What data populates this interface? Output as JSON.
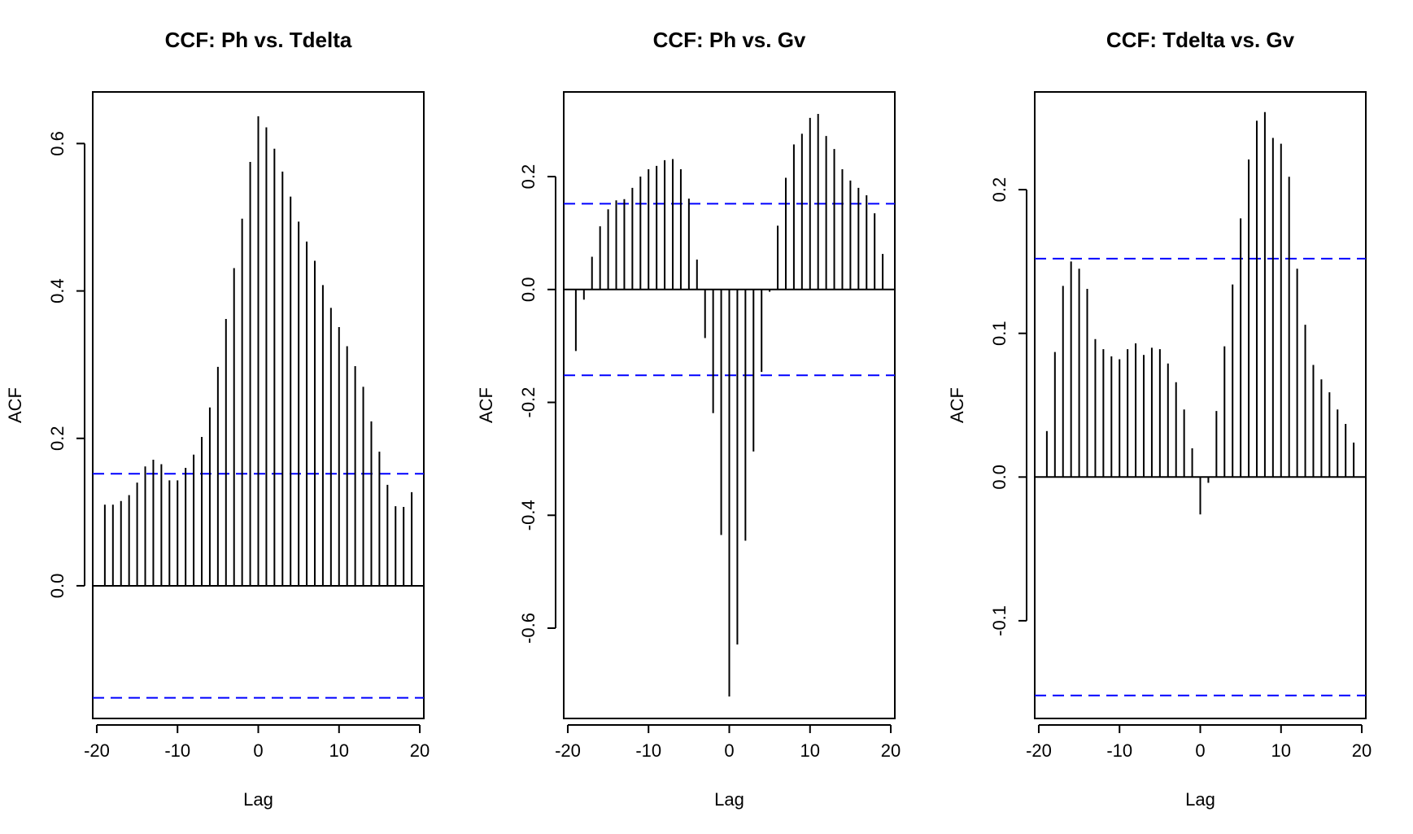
{
  "chart_data": [
    {
      "type": "bar",
      "title": "CCF: Ph vs. Tdelta",
      "xlabel": "Lag",
      "ylabel": "ACF",
      "xlim": [
        -20.5,
        20.5
      ],
      "ylim": [
        -0.18,
        0.67
      ],
      "xticks": [
        -20,
        -10,
        0,
        10,
        20
      ],
      "xtick_labels": [
        "-20",
        "-10",
        "0",
        "10",
        "20"
      ],
      "yticks": [
        0.0,
        0.2,
        0.4,
        0.6
      ],
      "ytick_labels": [
        "0.0",
        "0.2",
        "0.4",
        "0.6"
      ],
      "confidence_band": 0.152,
      "band_color": "#0000ff",
      "lags": [
        -19,
        -18,
        -17,
        -16,
        -15,
        -14,
        -13,
        -12,
        -11,
        -10,
        -9,
        -8,
        -7,
        -6,
        -5,
        -4,
        -3,
        -2,
        -1,
        0,
        1,
        2,
        3,
        4,
        5,
        6,
        7,
        8,
        9,
        10,
        11,
        12,
        13,
        14,
        15,
        16,
        17,
        18,
        19
      ],
      "values": [
        0.11,
        0.11,
        0.115,
        0.123,
        0.14,
        0.162,
        0.171,
        0.165,
        0.143,
        0.143,
        0.16,
        0.178,
        0.202,
        0.242,
        0.297,
        0.362,
        0.431,
        0.498,
        0.575,
        0.637,
        0.622,
        0.593,
        0.562,
        0.528,
        0.494,
        0.467,
        0.441,
        0.408,
        0.377,
        0.351,
        0.325,
        0.298,
        0.27,
        0.223,
        0.182,
        0.137,
        0.108,
        0.107,
        0.127
      ]
    },
    {
      "type": "bar",
      "title": "CCF: Ph vs. Gv",
      "xlabel": "Lag",
      "ylabel": "ACF",
      "xlim": [
        -20.5,
        20.5
      ],
      "ylim": [
        -0.76,
        0.35
      ],
      "xticks": [
        -20,
        -10,
        0,
        10,
        20
      ],
      "xtick_labels": [
        "-20",
        "-10",
        "0",
        "10",
        "20"
      ],
      "yticks": [
        -0.6,
        -0.4,
        -0.2,
        0.0,
        0.2
      ],
      "ytick_labels": [
        "-0.6",
        "-0.4",
        "-0.2",
        "0.0",
        "0.2"
      ],
      "confidence_band": 0.152,
      "band_color": "#0000ff",
      "lags": [
        -19,
        -18,
        -17,
        -16,
        -15,
        -14,
        -13,
        -12,
        -11,
        -10,
        -9,
        -8,
        -7,
        -6,
        -5,
        -4,
        -3,
        -2,
        -1,
        0,
        1,
        2,
        3,
        4,
        5,
        6,
        7,
        8,
        9,
        10,
        11,
        12,
        13,
        14,
        15,
        16,
        17,
        18,
        19
      ],
      "values": [
        -0.109,
        -0.018,
        0.058,
        0.112,
        0.142,
        0.158,
        0.16,
        0.18,
        0.2,
        0.213,
        0.219,
        0.229,
        0.231,
        0.213,
        0.161,
        0.053,
        -0.086,
        -0.219,
        -0.435,
        -0.721,
        -0.629,
        -0.445,
        -0.287,
        -0.146,
        -0.004,
        0.113,
        0.198,
        0.257,
        0.276,
        0.304,
        0.311,
        0.272,
        0.249,
        0.213,
        0.193,
        0.18,
        0.167,
        0.135,
        0.063
      ]
    },
    {
      "type": "bar",
      "title": "CCF: Tdelta vs. Gv",
      "xlabel": "Lag",
      "ylabel": "ACF",
      "xlim": [
        -20.5,
        20.5
      ],
      "ylim": [
        -0.168,
        0.268
      ],
      "xticks": [
        -20,
        -10,
        0,
        10,
        20
      ],
      "xtick_labels": [
        "-20",
        "-10",
        "0",
        "10",
        "20"
      ],
      "yticks": [
        -0.1,
        0.0,
        0.1,
        0.2
      ],
      "ytick_labels": [
        "-0.1",
        "0.0",
        "0.1",
        "0.2"
      ],
      "confidence_band": 0.152,
      "band_color": "#0000ff",
      "lags": [
        -19,
        -18,
        -17,
        -16,
        -15,
        -14,
        -13,
        -12,
        -11,
        -10,
        -9,
        -8,
        -7,
        -6,
        -5,
        -4,
        -3,
        -2,
        -1,
        0,
        1,
        2,
        3,
        4,
        5,
        6,
        7,
        8,
        9,
        10,
        11,
        12,
        13,
        14,
        15,
        16,
        17,
        18,
        19
      ],
      "values": [
        0.032,
        0.087,
        0.133,
        0.15,
        0.145,
        0.131,
        0.096,
        0.089,
        0.084,
        0.082,
        0.089,
        0.093,
        0.085,
        0.09,
        0.089,
        0.079,
        0.066,
        0.047,
        0.02,
        -0.026,
        -0.004,
        0.046,
        0.091,
        0.134,
        0.18,
        0.221,
        0.248,
        0.254,
        0.236,
        0.232,
        0.209,
        0.145,
        0.106,
        0.078,
        0.068,
        0.059,
        0.047,
        0.037,
        0.024
      ]
    }
  ]
}
